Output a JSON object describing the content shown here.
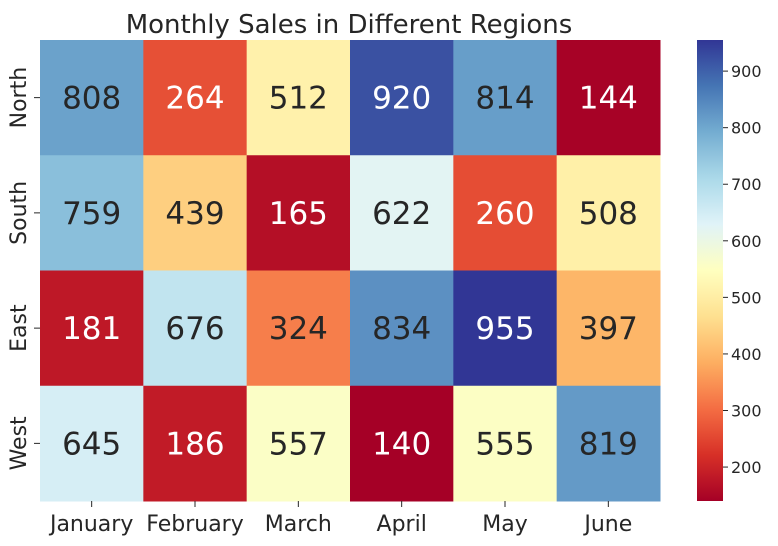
{
  "chart_data": {
    "type": "heatmap",
    "title": "Monthly Sales in Different Regions",
    "xlabel": "",
    "ylabel": "",
    "x": [
      "January",
      "February",
      "March",
      "April",
      "May",
      "June"
    ],
    "y": [
      "North",
      "South",
      "East",
      "West"
    ],
    "values": [
      [
        808,
        264,
        512,
        920,
        814,
        144
      ],
      [
        759,
        439,
        165,
        622,
        260,
        508
      ],
      [
        181,
        676,
        324,
        834,
        955,
        397
      ],
      [
        645,
        186,
        557,
        140,
        555,
        819
      ]
    ],
    "colormap": "RdYlBu",
    "vmin": 140,
    "vmax": 955,
    "colorbar_ticks": [
      200,
      300,
      400,
      500,
      600,
      700,
      800,
      900
    ],
    "annotations_shown": true
  }
}
